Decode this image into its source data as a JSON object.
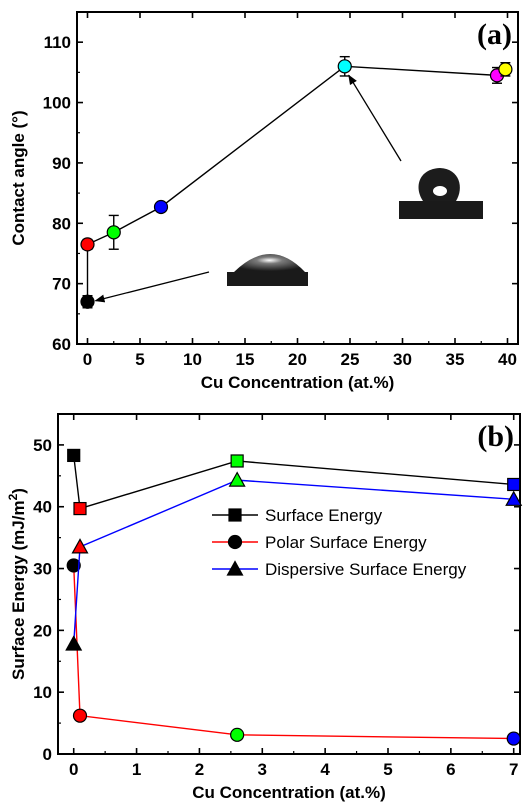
{
  "chart_data": [
    {
      "type": "scatter",
      "panel_label": "(a)",
      "xlabel": "Cu Concentration (at.%)",
      "ylabel": "Contact angle  (°)",
      "xlim": [
        -1,
        41
      ],
      "ylim": [
        60,
        115
      ],
      "xticks": [
        0,
        5,
        10,
        15,
        20,
        25,
        30,
        35,
        40
      ],
      "yticks": [
        60,
        70,
        80,
        90,
        100,
        110
      ],
      "line_path": [
        [
          0,
          67
        ],
        [
          0,
          76.5
        ],
        [
          2.5,
          78.5
        ],
        [
          7,
          82.7
        ],
        [
          24.5,
          106
        ],
        [
          39,
          104.5
        ],
        [
          39.8,
          105.5
        ]
      ],
      "points": [
        {
          "x": 0,
          "y": 67,
          "err": 1,
          "color": "#000000"
        },
        {
          "x": 0,
          "y": 76.5,
          "err": 0.8,
          "color": "#ff0000"
        },
        {
          "x": 2.5,
          "y": 78.5,
          "err": 2.8,
          "color": "#00ff00"
        },
        {
          "x": 7,
          "y": 82.7,
          "err": 0.6,
          "color": "#0000ff"
        },
        {
          "x": 24.5,
          "y": 106,
          "err": 1.6,
          "color": "#00ffff"
        },
        {
          "x": 39,
          "y": 104.5,
          "err": 1.3,
          "color": "#ff00ff"
        },
        {
          "x": 39.8,
          "y": 105.5,
          "err": 1.1,
          "color": "#ffff00"
        }
      ],
      "annotations": [
        {
          "type": "droplet-image",
          "shape": "flat",
          "arrow_target": [
            0,
            67
          ]
        },
        {
          "type": "droplet-image",
          "shape": "round",
          "arrow_target": [
            24.5,
            106
          ]
        }
      ]
    },
    {
      "type": "line",
      "panel_label": "(b)",
      "xlabel": "Cu Concentration (at.%)",
      "ylabel": "Surface Energy (mJ/m",
      "ylabel_sup": "2",
      "ylabel_tail": ")",
      "xlim": [
        -0.25,
        7.1
      ],
      "ylim": [
        0,
        55
      ],
      "xticks": [
        0,
        1,
        2,
        3,
        4,
        5,
        6,
        7
      ],
      "yticks": [
        0,
        10,
        20,
        30,
        40,
        50
      ],
      "legend_position": "center-right",
      "series": [
        {
          "name": "Surface Energy",
          "marker": "square",
          "line_color": "#000000",
          "points": [
            {
              "x": 0,
              "y": 48.3,
              "fill": "#000000"
            },
            {
              "x": 0.1,
              "y": 39.7,
              "fill": "#ff0000"
            },
            {
              "x": 2.6,
              "y": 47.4,
              "fill": "#00ff00"
            },
            {
              "x": 7,
              "y": 43.6,
              "fill": "#0000ff"
            }
          ]
        },
        {
          "name": "Polar Surface Energy",
          "marker": "circle",
          "line_color": "#ff0000",
          "points": [
            {
              "x": 0,
              "y": 30.5,
              "fill": "#000000"
            },
            {
              "x": 0.1,
              "y": 6.2,
              "fill": "#ff0000"
            },
            {
              "x": 2.6,
              "y": 3.1,
              "fill": "#00ff00"
            },
            {
              "x": 7,
              "y": 2.5,
              "fill": "#0000ff"
            }
          ]
        },
        {
          "name": "Dispersive Surface Energy",
          "marker": "triangle",
          "line_color": "#0000ff",
          "points": [
            {
              "x": 0,
              "y": 17.8,
              "fill": "#000000"
            },
            {
              "x": 0.1,
              "y": 33.5,
              "fill": "#ff0000"
            },
            {
              "x": 2.6,
              "y": 44.3,
              "fill": "#00ff00"
            },
            {
              "x": 7,
              "y": 41.2,
              "fill": "#0000ff"
            }
          ]
        }
      ]
    }
  ]
}
